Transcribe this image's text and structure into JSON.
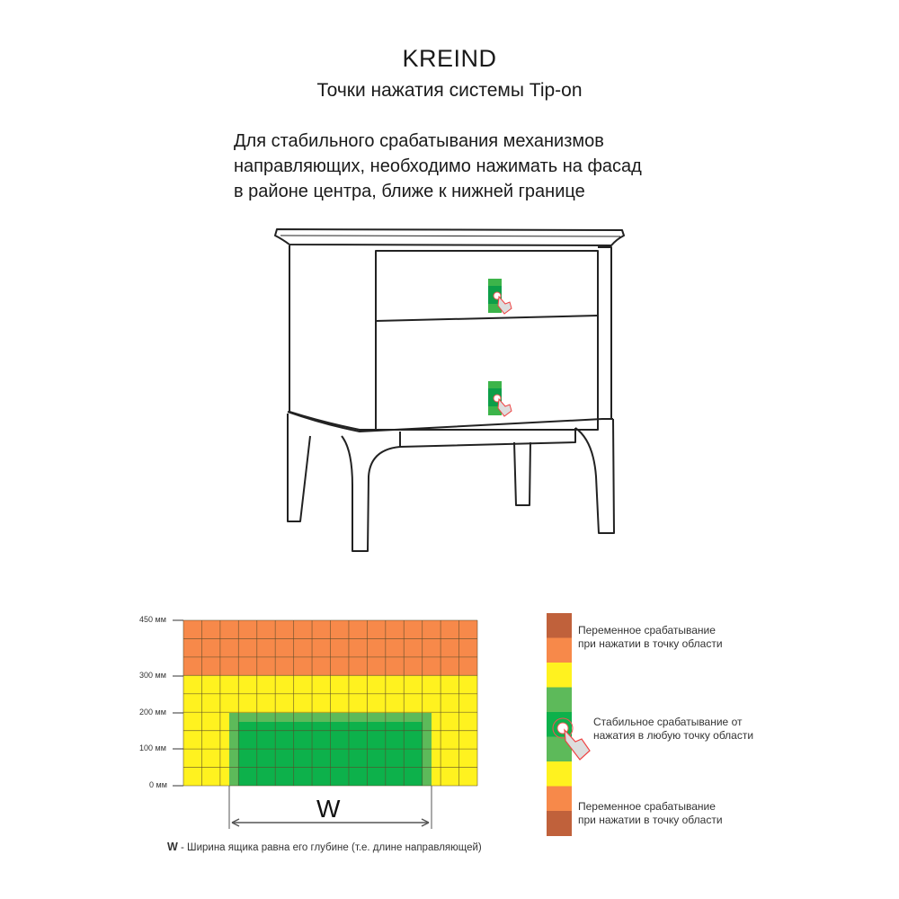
{
  "header": {
    "brand": "KREIND",
    "subtitle": "Точки нажатия системы Tip-on"
  },
  "instruction": {
    "lines": [
      "Для стабильного срабатывания механизмов",
      "направляющих, необходимо нажимать на фасад",
      "в районе центра, ближе к нижней границе"
    ]
  },
  "illustration": {
    "subject": "nightstand-with-two-drawers",
    "press_marker_icon": "hand-pointer-press-icon"
  },
  "zone_diagram": {
    "height_ticks": [
      "450 мм",
      "300 мм",
      "200 мм",
      "100 мм",
      "0 мм"
    ],
    "width_label": "W",
    "caption_key": "W",
    "caption_text": " - Ширина ящика равна его глубине (т.е. длине направляющей)",
    "colors": {
      "orange": "#f7894a",
      "yellow": "#fff21f",
      "light_green": "#5dba5a",
      "dark_green": "#0db14b",
      "brown": "#c0613b"
    }
  },
  "legend": {
    "segments": [
      "brown",
      "orange",
      "yellow",
      "light_green",
      "dark_green",
      "light_green",
      "yellow",
      "orange",
      "brown"
    ],
    "variable_top": [
      "Переменное срабатывание",
      "при нажатии в точку области"
    ],
    "stable": [
      "Стабильное срабатывание от",
      "нажатия в любую точку области"
    ],
    "variable_bottom": [
      "Переменное срабатывание",
      "при нажатии в точку области"
    ],
    "icon": "hand-pointer-press-icon"
  }
}
